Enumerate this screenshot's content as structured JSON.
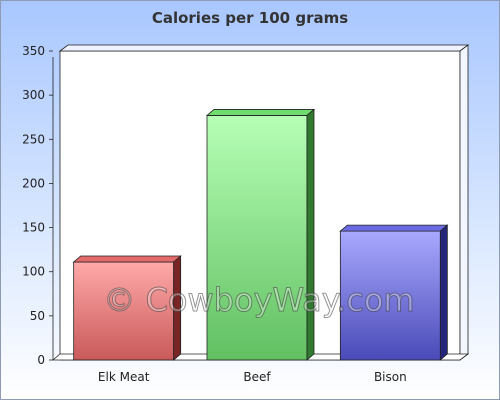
{
  "chart_data": {
    "type": "bar",
    "title": "Calories per 100 grams",
    "xlabel": "",
    "ylabel": "",
    "categories": [
      "Elk Meat",
      "Beef",
      "Bison"
    ],
    "values": [
      111,
      277,
      146
    ],
    "ylim": [
      0,
      350
    ],
    "yticks": [
      0,
      50,
      100,
      150,
      200,
      250,
      300,
      350
    ],
    "grid": false,
    "legend": "none",
    "bar_colors": {
      "front_top": [
        "#ffa9a9",
        "#b6ffb6",
        "#a9a9ff"
      ],
      "front_bottom": [
        "#c95a5a",
        "#62c062",
        "#4a4ab8"
      ],
      "side": [
        "#7a2525",
        "#2f7a2f",
        "#25257a"
      ],
      "top": [
        "#e26a6a",
        "#6edc6e",
        "#6a6ae2"
      ]
    }
  },
  "watermark": "© CowboyWay.com"
}
